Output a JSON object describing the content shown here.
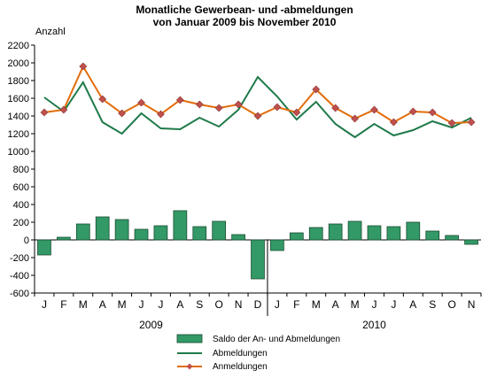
{
  "chart_data": {
    "type": "bar",
    "title_line1": "Monatliche Gewerbean- und -abmeldungen",
    "title_line2": "von Januar 2009 bis November 2010",
    "ylabel": "Anzahl",
    "ylim": [
      -600,
      2200
    ],
    "yticks": [
      -600,
      -400,
      -200,
      0,
      200,
      400,
      600,
      800,
      1000,
      1200,
      1400,
      1600,
      1800,
      2000,
      2200
    ],
    "categories": [
      "J",
      "F",
      "M",
      "A",
      "M",
      "J",
      "J",
      "A",
      "S",
      "O",
      "N",
      "D",
      "J",
      "F",
      "M",
      "A",
      "M",
      "J",
      "J",
      "A",
      "S",
      "O",
      "N"
    ],
    "year_labels": [
      "2009",
      "2010"
    ],
    "grid": false,
    "legend_position": "bottom",
    "series": [
      {
        "name": "Saldo der An- und Abmeldungen",
        "kind": "bar",
        "color": "#339966",
        "values": [
          -170,
          30,
          180,
          260,
          230,
          120,
          160,
          330,
          150,
          210,
          60,
          -440,
          -120,
          80,
          140,
          180,
          210,
          160,
          150,
          200,
          100,
          50,
          -50
        ]
      },
      {
        "name": "Abmeldungen",
        "kind": "line",
        "color": "#1f7a4a",
        "values": [
          1610,
          1450,
          1780,
          1330,
          1200,
          1430,
          1260,
          1250,
          1380,
          1280,
          1470,
          1840,
          1620,
          1360,
          1560,
          1310,
          1160,
          1310,
          1180,
          1240,
          1340,
          1270,
          1380
        ]
      },
      {
        "name": "Anmeldungen",
        "kind": "line-marker",
        "color": "#e36c0a",
        "marker_color": "#c0504d",
        "values": [
          1440,
          1470,
          1960,
          1590,
          1430,
          1550,
          1420,
          1580,
          1530,
          1490,
          1530,
          1400,
          1500,
          1440,
          1700,
          1490,
          1370,
          1470,
          1330,
          1450,
          1440,
          1320,
          1330
        ]
      }
    ]
  }
}
